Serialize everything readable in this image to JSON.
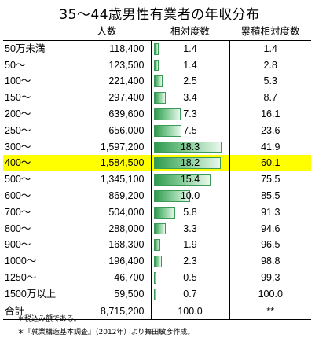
{
  "title": "35～44歳男性有業者の年収分布",
  "headers": {
    "count": "人数",
    "relative": "相対度数",
    "cumulative": "累積相対度数"
  },
  "colors": {
    "highlight": "#ffff00",
    "bar": "#2f9a4f"
  },
  "rows": [
    {
      "label": "50万未満",
      "count": "118,400",
      "rel": "1.4",
      "cum": "1.4"
    },
    {
      "label": "50～",
      "count": "123,500",
      "rel": "1.4",
      "cum": "2.8"
    },
    {
      "label": "100～",
      "count": "221,400",
      "rel": "2.5",
      "cum": "5.3"
    },
    {
      "label": "150～",
      "count": "297,400",
      "rel": "3.4",
      "cum": "8.7"
    },
    {
      "label": "200～",
      "count": "639,600",
      "rel": "7.3",
      "cum": "16.1"
    },
    {
      "label": "250～",
      "count": "656,000",
      "rel": "7.5",
      "cum": "23.6"
    },
    {
      "label": "300～",
      "count": "1,597,200",
      "rel": "18.3",
      "cum": "41.9"
    },
    {
      "label": "400～",
      "count": "1,584,500",
      "rel": "18.2",
      "cum": "60.1",
      "highlight": true
    },
    {
      "label": "500～",
      "count": "1,345,100",
      "rel": "15.4",
      "cum": "75.5"
    },
    {
      "label": "600～",
      "count": "869,200",
      "rel": "10.0",
      "cum": "85.5"
    },
    {
      "label": "700～",
      "count": "504,000",
      "rel": "5.8",
      "cum": "91.3"
    },
    {
      "label": "800～",
      "count": "288,000",
      "rel": "3.3",
      "cum": "94.6"
    },
    {
      "label": "900～",
      "count": "168,300",
      "rel": "1.9",
      "cum": "96.5"
    },
    {
      "label": "1000～",
      "count": "196,400",
      "rel": "2.3",
      "cum": "98.8"
    },
    {
      "label": "1250～",
      "count": "46,700",
      "rel": "0.5",
      "cum": "99.3"
    },
    {
      "label": "1500万以上",
      "count": "59,500",
      "rel": "0.7",
      "cum": "100.0"
    }
  ],
  "total": {
    "label": "合計",
    "count": "8,715,200",
    "rel": "100.0",
    "cum": "**"
  },
  "notes": [
    "＊税込み額である。",
    "＊『就業構造基本調査』（2012年）より舞田敏彦作成。"
  ]
}
